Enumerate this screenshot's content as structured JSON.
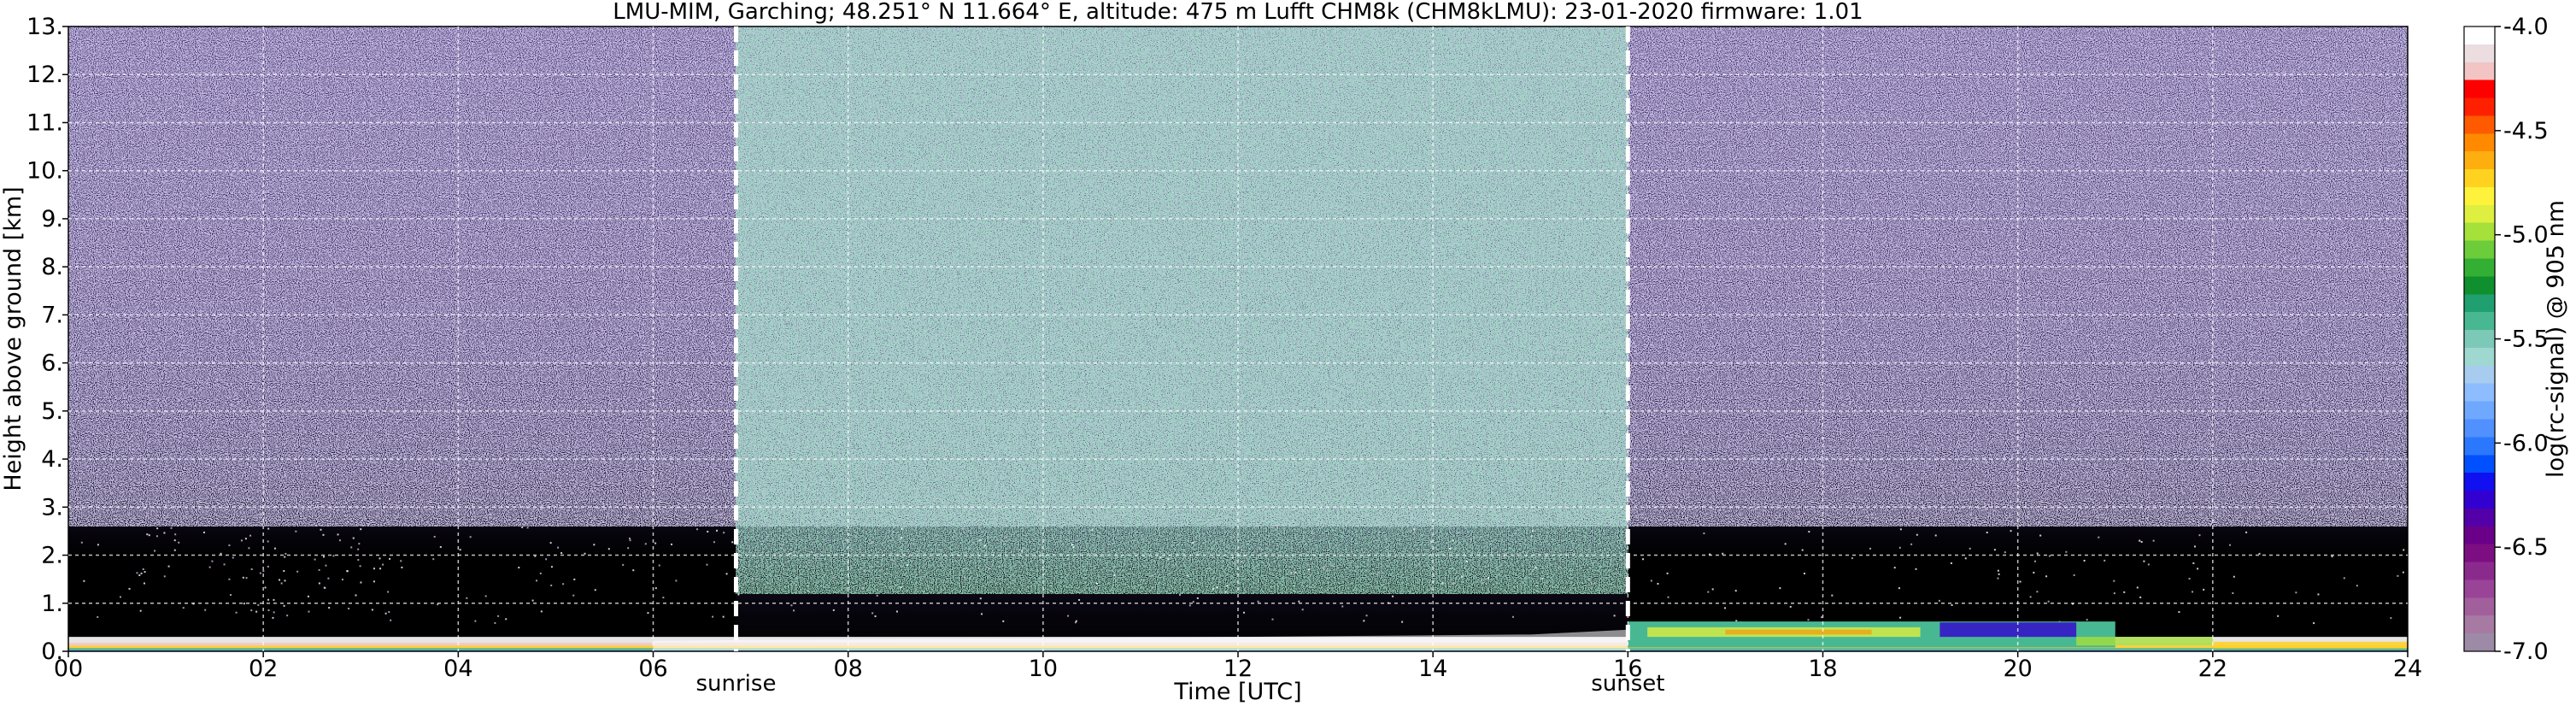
{
  "chart_data": {
    "type": "heatmap",
    "title": "LMU-MIM, Garching; 48.251° N 11.664° E, altitude: 475 m    Lufft CHM8k (CHM8kLMU): 23-01-2020    firmware: 1.01",
    "xlabel": "Time [UTC]",
    "ylabel": "Height above ground [km]",
    "xlim": [
      0,
      24
    ],
    "ylim": [
      0,
      13
    ],
    "x_ticks": [
      "00",
      "02",
      "04",
      "06",
      "08",
      "10",
      "12",
      "14",
      "16",
      "18",
      "20",
      "22",
      "24"
    ],
    "y_ticks": [
      "0.",
      "1.",
      "2.",
      "3.",
      "4.",
      "5.",
      "6.",
      "7.",
      "8.",
      "9.",
      "10.",
      "11.",
      "12.",
      "13."
    ],
    "grid": true,
    "annotations": [
      {
        "label": "sunrise",
        "x": 6.85
      },
      {
        "label": "sunset",
        "x": 16.0
      }
    ],
    "colorbar": {
      "label": "log(rc-signal) @ 905 nm",
      "range": [
        -7.0,
        -4.0
      ],
      "ticks": [
        "-4.0",
        "-4.5",
        "-5.0",
        "-5.5",
        "-6.0",
        "-6.5",
        "-7.0"
      ],
      "colors": [
        "#9c8aa6",
        "#a77aa3",
        "#a15f9c",
        "#9a4497",
        "#8b2a8d",
        "#7c0e82",
        "#6a0089",
        "#5300a8",
        "#3200d0",
        "#1010f0",
        "#0050ff",
        "#2b78ff",
        "#5090ff",
        "#6fa8ff",
        "#8dbcff",
        "#a7ccf0",
        "#9fd8d0",
        "#7cc9b8",
        "#48b893",
        "#20a070",
        "#0f8f2d",
        "#33b033",
        "#6ccc3a",
        "#a6e03b",
        "#dfef40",
        "#fff23a",
        "#ffd21f",
        "#ffae10",
        "#ff8a00",
        "#ff5a00",
        "#ff2000",
        "#ff0000",
        "#f2c4c4",
        "#ebdde0",
        "#ffffff"
      ]
    },
    "features": [
      {
        "kind": "noise",
        "x": [
          0,
          24
        ],
        "y": [
          0.2,
          13
        ],
        "note_color": "#5a4a7a"
      },
      {
        "kind": "surface_layer",
        "x": [
          0,
          24
        ],
        "y": [
          0,
          0.3
        ]
      },
      {
        "kind": "aerosol_layer",
        "x": [
          16,
          21
        ],
        "y": [
          0.1,
          0.6
        ]
      }
    ]
  }
}
